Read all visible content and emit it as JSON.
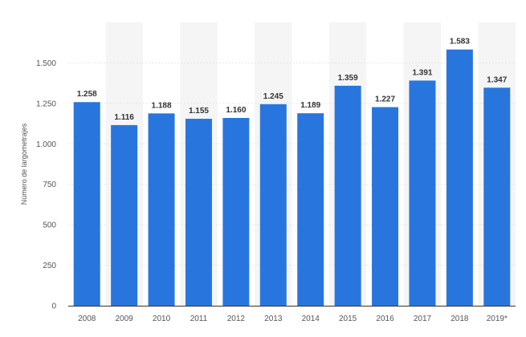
{
  "chart_data": {
    "type": "bar",
    "categories": [
      "2008",
      "2009",
      "2010",
      "2011",
      "2012",
      "2013",
      "2014",
      "2015",
      "2016",
      "2017",
      "2018",
      "2019*"
    ],
    "values": [
      1258,
      1116,
      1188,
      1155,
      1160,
      1245,
      1189,
      1359,
      1227,
      1391,
      1583,
      1347
    ],
    "value_labels": [
      "1.258",
      "1.116",
      "1.188",
      "1.155",
      "1.160",
      "1.245",
      "1.189",
      "1.359",
      "1.227",
      "1.391",
      "1.583",
      "1.347"
    ],
    "ylabel": "Número de largometrajes",
    "xlabel": "",
    "ylim": [
      0,
      1750
    ],
    "yticks": [
      0,
      250,
      500,
      750,
      1000,
      1250,
      1500
    ],
    "ytick_labels": [
      "0",
      "250",
      "500",
      "750",
      "1.000",
      "1.250",
      "1.500"
    ],
    "grid": true,
    "legend": "none",
    "colors": {
      "bar": "#2876dd",
      "band": "#f5f5f5",
      "grid": "#e6e6e6",
      "axis": "#333333",
      "text": "#555555",
      "value_text": "#333333"
    }
  }
}
